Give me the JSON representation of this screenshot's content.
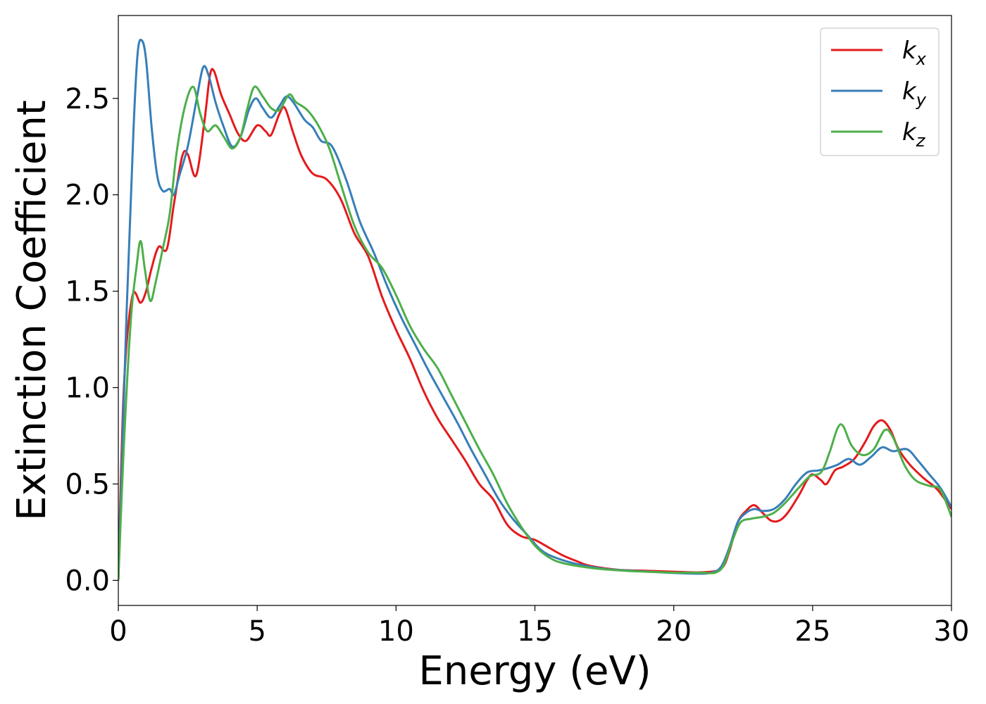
{
  "chart_data": {
    "type": "line",
    "title": "",
    "xlabel": "Energy (eV)",
    "ylabel": "Extinction Coefficient",
    "xlim": [
      0,
      30
    ],
    "ylim": [
      -0.13,
      2.93
    ],
    "xticks": [
      0,
      5,
      10,
      15,
      20,
      25,
      30
    ],
    "xtick_labels": [
      "0",
      "5",
      "10",
      "15",
      "20",
      "25",
      "30"
    ],
    "yticks": [
      0.0,
      0.5,
      1.0,
      1.5,
      2.0,
      2.5
    ],
    "ytick_labels": [
      "0.0",
      "0.5",
      "1.0",
      "1.5",
      "2.0",
      "2.5"
    ],
    "grid": false,
    "legend_position": "top-right",
    "series": [
      {
        "name": "k_x",
        "label_base": "k",
        "label_sub": "x",
        "color": "#e41a1c",
        "points": [
          [
            0,
            0
          ],
          [
            0.2,
            1.0
          ],
          [
            0.5,
            1.47
          ],
          [
            0.8,
            1.44
          ],
          [
            1.0,
            1.5
          ],
          [
            1.2,
            1.62
          ],
          [
            1.45,
            1.73
          ],
          [
            1.75,
            1.72
          ],
          [
            2.0,
            1.95
          ],
          [
            2.3,
            2.2
          ],
          [
            2.5,
            2.21
          ],
          [
            2.8,
            2.1
          ],
          [
            3.1,
            2.38
          ],
          [
            3.3,
            2.62
          ],
          [
            3.45,
            2.64
          ],
          [
            3.7,
            2.52
          ],
          [
            4.0,
            2.42
          ],
          [
            4.3,
            2.32
          ],
          [
            4.6,
            2.28
          ],
          [
            5.0,
            2.36
          ],
          [
            5.3,
            2.33
          ],
          [
            5.5,
            2.31
          ],
          [
            5.8,
            2.42
          ],
          [
            6.0,
            2.45
          ],
          [
            6.3,
            2.32
          ],
          [
            6.6,
            2.2
          ],
          [
            7.0,
            2.11
          ],
          [
            7.5,
            2.08
          ],
          [
            8.0,
            1.98
          ],
          [
            8.5,
            1.8
          ],
          [
            9.0,
            1.68
          ],
          [
            9.5,
            1.47
          ],
          [
            10,
            1.3
          ],
          [
            10.5,
            1.15
          ],
          [
            11,
            0.98
          ],
          [
            11.5,
            0.84
          ],
          [
            12,
            0.73
          ],
          [
            12.5,
            0.62
          ],
          [
            13,
            0.5
          ],
          [
            13.5,
            0.42
          ],
          [
            14,
            0.29
          ],
          [
            14.5,
            0.23
          ],
          [
            15,
            0.21
          ],
          [
            15.5,
            0.17
          ],
          [
            16,
            0.13
          ],
          [
            16.5,
            0.1
          ],
          [
            17,
            0.075
          ],
          [
            18,
            0.055
          ],
          [
            19,
            0.05
          ],
          [
            20,
            0.045
          ],
          [
            21,
            0.042
          ],
          [
            21.7,
            0.06
          ],
          [
            22.0,
            0.15
          ],
          [
            22.3,
            0.3
          ],
          [
            22.6,
            0.36
          ],
          [
            22.9,
            0.39
          ],
          [
            23.2,
            0.35
          ],
          [
            23.5,
            0.31
          ],
          [
            23.8,
            0.31
          ],
          [
            24.1,
            0.35
          ],
          [
            24.5,
            0.44
          ],
          [
            24.8,
            0.52
          ],
          [
            25.0,
            0.55
          ],
          [
            25.3,
            0.52
          ],
          [
            25.5,
            0.5
          ],
          [
            25.8,
            0.57
          ],
          [
            26.1,
            0.59
          ],
          [
            26.5,
            0.63
          ],
          [
            26.9,
            0.72
          ],
          [
            27.2,
            0.8
          ],
          [
            27.5,
            0.83
          ],
          [
            27.8,
            0.78
          ],
          [
            28.1,
            0.68
          ],
          [
            28.5,
            0.6
          ],
          [
            29.0,
            0.53
          ],
          [
            29.5,
            0.47
          ],
          [
            30.0,
            0.37
          ]
        ]
      },
      {
        "name": "k_y",
        "label_base": "k",
        "label_sub": "y",
        "color": "#377eb8",
        "points": [
          [
            0,
            0
          ],
          [
            0.3,
            1.4
          ],
          [
            0.55,
            2.35
          ],
          [
            0.7,
            2.74
          ],
          [
            0.85,
            2.8
          ],
          [
            1.0,
            2.7
          ],
          [
            1.2,
            2.35
          ],
          [
            1.4,
            2.1
          ],
          [
            1.6,
            2.02
          ],
          [
            1.85,
            2.03
          ],
          [
            2.0,
            2.0
          ],
          [
            2.2,
            2.1
          ],
          [
            2.5,
            2.25
          ],
          [
            2.8,
            2.48
          ],
          [
            3.05,
            2.66
          ],
          [
            3.25,
            2.62
          ],
          [
            3.5,
            2.48
          ],
          [
            3.8,
            2.35
          ],
          [
            4.1,
            2.25
          ],
          [
            4.4,
            2.3
          ],
          [
            4.7,
            2.44
          ],
          [
            4.95,
            2.5
          ],
          [
            5.2,
            2.45
          ],
          [
            5.5,
            2.4
          ],
          [
            5.8,
            2.46
          ],
          [
            6.05,
            2.51
          ],
          [
            6.3,
            2.48
          ],
          [
            6.7,
            2.39
          ],
          [
            7.0,
            2.35
          ],
          [
            7.3,
            2.28
          ],
          [
            7.7,
            2.25
          ],
          [
            8.2,
            2.08
          ],
          [
            8.7,
            1.86
          ],
          [
            9.2,
            1.7
          ],
          [
            9.7,
            1.52
          ],
          [
            10.2,
            1.36
          ],
          [
            10.7,
            1.22
          ],
          [
            11.2,
            1.08
          ],
          [
            11.7,
            0.95
          ],
          [
            12.2,
            0.82
          ],
          [
            12.7,
            0.68
          ],
          [
            13.2,
            0.55
          ],
          [
            13.7,
            0.42
          ],
          [
            14.2,
            0.32
          ],
          [
            14.7,
            0.24
          ],
          [
            15.2,
            0.16
          ],
          [
            15.7,
            0.12
          ],
          [
            16.5,
            0.085
          ],
          [
            17.5,
            0.06
          ],
          [
            18.5,
            0.05
          ],
          [
            19.5,
            0.042
          ],
          [
            20.5,
            0.036
          ],
          [
            21.3,
            0.038
          ],
          [
            21.7,
            0.07
          ],
          [
            22.0,
            0.17
          ],
          [
            22.3,
            0.3
          ],
          [
            22.6,
            0.35
          ],
          [
            22.9,
            0.37
          ],
          [
            23.2,
            0.36
          ],
          [
            23.6,
            0.37
          ],
          [
            24.0,
            0.42
          ],
          [
            24.4,
            0.5
          ],
          [
            24.8,
            0.56
          ],
          [
            25.2,
            0.57
          ],
          [
            25.5,
            0.58
          ],
          [
            25.9,
            0.6
          ],
          [
            26.3,
            0.63
          ],
          [
            26.7,
            0.6
          ],
          [
            27.1,
            0.64
          ],
          [
            27.5,
            0.69
          ],
          [
            27.9,
            0.67
          ],
          [
            28.4,
            0.68
          ],
          [
            28.8,
            0.62
          ],
          [
            29.2,
            0.55
          ],
          [
            29.6,
            0.48
          ],
          [
            30.0,
            0.38
          ]
        ]
      },
      {
        "name": "k_z",
        "label_base": "k",
        "label_sub": "z",
        "color": "#4daf4a",
        "points": [
          [
            0,
            0
          ],
          [
            0.2,
            0.7
          ],
          [
            0.45,
            1.35
          ],
          [
            0.65,
            1.62
          ],
          [
            0.8,
            1.76
          ],
          [
            0.95,
            1.62
          ],
          [
            1.15,
            1.45
          ],
          [
            1.35,
            1.55
          ],
          [
            1.6,
            1.72
          ],
          [
            1.85,
            1.9
          ],
          [
            2.1,
            2.22
          ],
          [
            2.4,
            2.46
          ],
          [
            2.7,
            2.56
          ],
          [
            2.95,
            2.42
          ],
          [
            3.2,
            2.33
          ],
          [
            3.5,
            2.36
          ],
          [
            3.8,
            2.3
          ],
          [
            4.1,
            2.24
          ],
          [
            4.4,
            2.3
          ],
          [
            4.65,
            2.45
          ],
          [
            4.9,
            2.56
          ],
          [
            5.2,
            2.51
          ],
          [
            5.5,
            2.45
          ],
          [
            5.8,
            2.44
          ],
          [
            6.15,
            2.52
          ],
          [
            6.4,
            2.48
          ],
          [
            6.8,
            2.44
          ],
          [
            7.2,
            2.36
          ],
          [
            7.6,
            2.24
          ],
          [
            8.0,
            2.06
          ],
          [
            8.5,
            1.84
          ],
          [
            9.0,
            1.7
          ],
          [
            9.5,
            1.62
          ],
          [
            10.0,
            1.48
          ],
          [
            10.5,
            1.32
          ],
          [
            11.0,
            1.2
          ],
          [
            11.5,
            1.1
          ],
          [
            12.0,
            0.96
          ],
          [
            12.5,
            0.82
          ],
          [
            13.0,
            0.68
          ],
          [
            13.5,
            0.55
          ],
          [
            14.0,
            0.4
          ],
          [
            14.5,
            0.28
          ],
          [
            15.0,
            0.18
          ],
          [
            15.5,
            0.12
          ],
          [
            16.0,
            0.09
          ],
          [
            17.0,
            0.065
          ],
          [
            18.0,
            0.052
          ],
          [
            19.0,
            0.045
          ],
          [
            20.0,
            0.04
          ],
          [
            21.0,
            0.04
          ],
          [
            21.5,
            0.04
          ],
          [
            21.8,
            0.08
          ],
          [
            22.1,
            0.2
          ],
          [
            22.4,
            0.3
          ],
          [
            22.8,
            0.32
          ],
          [
            23.2,
            0.33
          ],
          [
            23.6,
            0.35
          ],
          [
            24.0,
            0.4
          ],
          [
            24.5,
            0.48
          ],
          [
            24.9,
            0.54
          ],
          [
            25.3,
            0.56
          ],
          [
            25.6,
            0.66
          ],
          [
            25.9,
            0.79
          ],
          [
            26.1,
            0.8
          ],
          [
            26.4,
            0.7
          ],
          [
            26.8,
            0.65
          ],
          [
            27.2,
            0.68
          ],
          [
            27.6,
            0.78
          ],
          [
            27.9,
            0.74
          ],
          [
            28.3,
            0.6
          ],
          [
            28.7,
            0.52
          ],
          [
            29.2,
            0.49
          ],
          [
            29.6,
            0.47
          ],
          [
            30.0,
            0.33
          ]
        ]
      }
    ]
  }
}
